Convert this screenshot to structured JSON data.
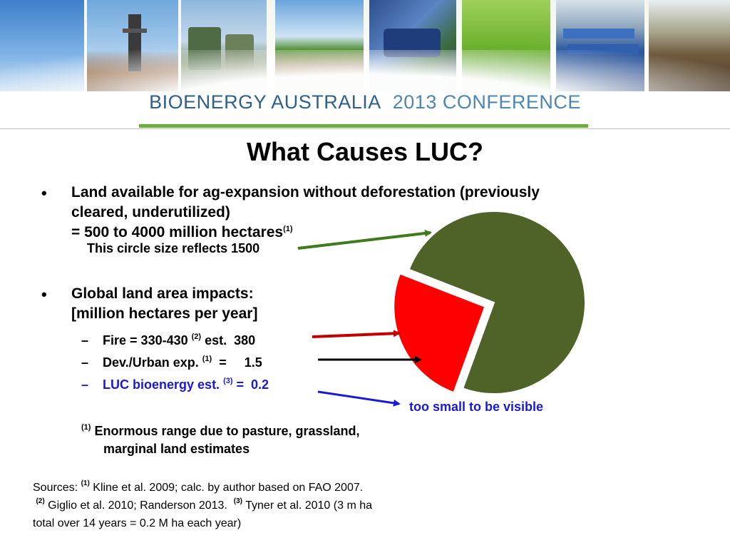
{
  "banner": {
    "title_main": "BIOENERGY AUSTRALIA",
    "title_year": "2013 CONFERENCE",
    "photos": [
      "sky-photo",
      "biomass-plant-photo",
      "storage-tanks-photo",
      "crop-field-photo",
      "machinery-photo",
      "grass-photo",
      "generators-photo",
      "forest-residue-photo"
    ]
  },
  "slide": {
    "title": "What Causes LUC?",
    "bullet1": {
      "marker": "•",
      "line1": "Land available for ag-expansion without deforestation (previously",
      "line2": "cleared, underutilized)",
      "line3": "= 500 to 4000 million hectares",
      "line3_sup": "(1)",
      "note": "This circle size reflects 1500"
    },
    "bullet2": {
      "marker": "•",
      "line1": "Global land area impacts:",
      "line2": "[million hectares per year]"
    },
    "subitems": [
      {
        "dash": "–",
        "text": "Fire  = 330-430 ",
        "sup": "(2)",
        "tail": " est.  380"
      },
      {
        "dash": "–",
        "text": "Dev./Urban exp. ",
        "sup": "(1)",
        "tail": "  =     1.5"
      },
      {
        "dash": "–",
        "text": "LUC bioenergy est. ",
        "sup": "(3)",
        "tail": " =  0.2"
      }
    ],
    "small_label": "too small to be visible",
    "footnote_sup": "(1)",
    "footnote_line1": "Enormous range due to pasture, grassland,",
    "footnote_line2": "marginal land estimates"
  },
  "sources": {
    "prefix": "Sources: ",
    "s1_sup": "(1)",
    "s1_text": " Kline et al. 2009; calc. by author based on FAO 2007.",
    "s2_sup": "(2)",
    "s2_text": " Giglio et al. 2010; Randerson 2013.  ",
    "s3_sup": "(3)",
    "s3_text": " Tyner et al. 2010 (3 m ha",
    "line3": "total over 14 years = 0.2 M ha each year)"
  },
  "colors": {
    "available_land": "#4f6228",
    "fire": "#ff0000",
    "arrow_green": "#3f7a1c",
    "arrow_red": "#c00000",
    "arrow_black": "#000000",
    "arrow_blue": "#1a1ad4",
    "text_blue": "#1a1ad4",
    "banner_text": "#2f5f8a",
    "banner_rule": "#6cae3b"
  },
  "pie": {
    "total": 1500,
    "fire": 380
  }
}
